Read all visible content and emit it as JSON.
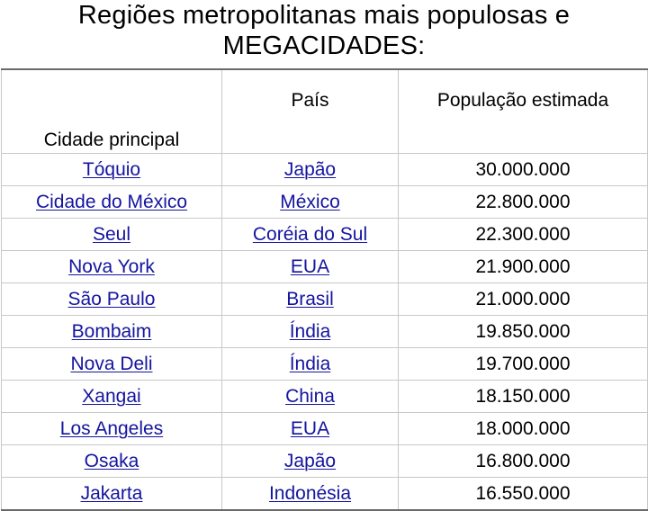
{
  "title": {
    "line1": "Regiões metropolitanas mais populosas e",
    "line2": "MEGACIDADES:"
  },
  "table": {
    "headers": {
      "city": "Cidade principal",
      "country": "País",
      "population": "População estimada"
    },
    "rows": [
      {
        "city": "Tóquio",
        "country": "Japão",
        "population": "30.000.000"
      },
      {
        "city": "Cidade do México",
        "country": "México",
        "population": "22.800.000"
      },
      {
        "city": "Seul",
        "country": "Coréia do Sul",
        "population": "22.300.000"
      },
      {
        "city": "Nova York",
        "country": "EUA",
        "population": "21.900.000"
      },
      {
        "city": "São Paulo",
        "country": "Brasil",
        "population": "21.000.000"
      },
      {
        "city": "Bombaim",
        "country": "Índia",
        "population": "19.850.000"
      },
      {
        "city": "Nova Deli",
        "country": "Índia",
        "population": "19.700.000"
      },
      {
        "city": "Xangai",
        "country": "China",
        "population": "18.150.000"
      },
      {
        "city": "Los Angeles",
        "country": "EUA",
        "population": "18.000.000"
      },
      {
        "city": "Osaka",
        "country": "Japão",
        "population": "16.800.000"
      },
      {
        "city": "Jakarta",
        "country": "Indonésia",
        "population": "16.550.000"
      }
    ]
  },
  "colors": {
    "link_text": "#1414a0",
    "body_text": "#000000",
    "grid": "#c8c8c8"
  }
}
